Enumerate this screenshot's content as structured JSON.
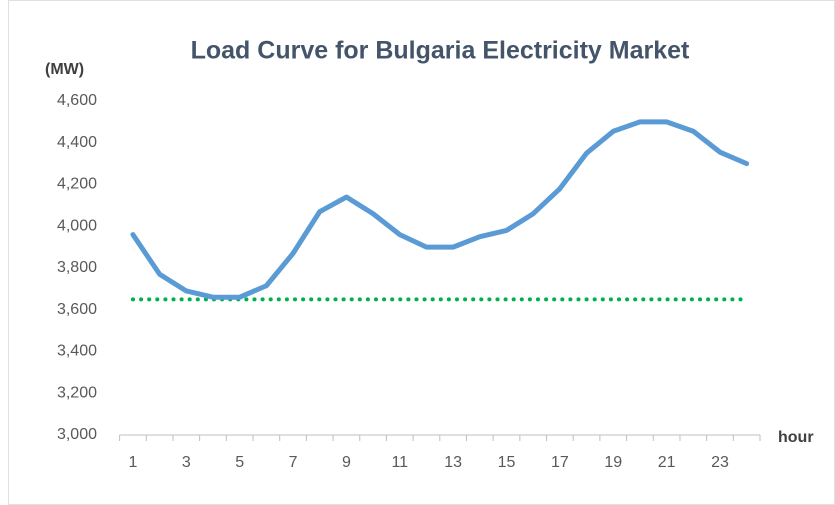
{
  "chart_data": {
    "type": "line",
    "title": "Load Curve for Bulgaria Electricity Market",
    "y_label": "(MW)",
    "x_label": "hour",
    "categories": [
      1,
      null,
      3,
      null,
      5,
      null,
      7,
      null,
      9,
      null,
      11,
      null,
      13,
      null,
      15,
      null,
      17,
      null,
      19,
      null,
      21,
      null,
      23,
      null
    ],
    "series": [
      {
        "color": "#5b9bd5",
        "style": "solid",
        "values": [
          3960,
          3770,
          3690,
          3660,
          3660,
          3715,
          3870,
          4070,
          4140,
          4060,
          3960,
          3900,
          3900,
          3950,
          3980,
          4060,
          4180,
          4350,
          4455,
          4500,
          4500,
          4455,
          4355,
          4300
        ]
      },
      {
        "color": "#00b050",
        "style": "dotted",
        "values": [
          3650,
          3650,
          3650,
          3650,
          3650,
          3650,
          3650,
          3650,
          3650,
          3650,
          3650,
          3650,
          3650,
          3650,
          3650,
          3650,
          3650,
          3650,
          3650,
          3650,
          3650,
          3650,
          3650,
          3650
        ]
      }
    ],
    "ylim": [
      3000,
      4600
    ],
    "yticks": [
      {
        "value": 3000,
        "label": "3,000"
      },
      {
        "value": 3200,
        "label": "3,200"
      },
      {
        "value": 3400,
        "label": "3,400"
      },
      {
        "value": 3600,
        "label": "3,600"
      },
      {
        "value": 3800,
        "label": "3,800"
      },
      {
        "value": 4000,
        "label": "4,000"
      },
      {
        "value": 4200,
        "label": "4,200"
      },
      {
        "value": 4400,
        "label": "4,400"
      },
      {
        "value": 4600,
        "label": "4,600"
      }
    ],
    "grid": false
  }
}
